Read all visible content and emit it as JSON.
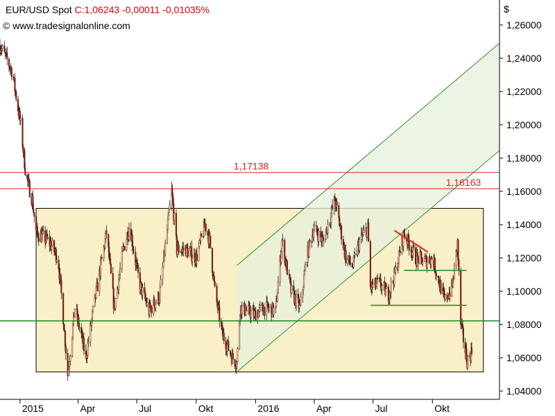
{
  "header": {
    "symbol": "EUR/USD Spot",
    "quote": "C:1,06243 -0,00011 -0,01035%"
  },
  "watermark": "© www.tradesignalonline.com",
  "colors": {
    "candle_body": "#7a1a10",
    "wick": "#000000",
    "resistance_lines": "#e02020",
    "support_lines": "#1a8a1a",
    "range_box_fill": "#f9f0c8",
    "channel_line": "#2e8b2e",
    "channel_fill": "#e6f0dc"
  },
  "chart_data": {
    "type": "candlestick",
    "currency_label": "$",
    "ylim": [
      1.035,
      1.275
    ],
    "y_ticks": [
      "1,26000",
      "1,24000",
      "1,22000",
      "1,20000",
      "1,18000",
      "1,16000",
      "1,14000",
      "1,12000",
      "1,10000",
      "1,08000",
      "1,06000",
      "1,04000"
    ],
    "y_tick_values": [
      1.26,
      1.24,
      1.22,
      1.2,
      1.18,
      1.16,
      1.14,
      1.12,
      1.1,
      1.08,
      1.06,
      1.04
    ],
    "x_ticks": [
      "2015",
      "Apr",
      "Jul",
      "Okt",
      "2016",
      "Apr",
      "Jul",
      "Okt"
    ],
    "x_tick_dates": [
      "2015-01-01",
      "2015-04-01",
      "2015-07-01",
      "2015-10-01",
      "2016-01-01",
      "2016-04-01",
      "2016-07-01",
      "2016-10-01"
    ],
    "x_range": [
      "2014-12-01",
      "2017-01-13"
    ],
    "price_path": [
      [
        "2014-12-01",
        1.248
      ],
      [
        "2014-12-20",
        1.232
      ],
      [
        "2015-01-02",
        1.2
      ],
      [
        "2015-01-10",
        1.17
      ],
      [
        "2015-01-20",
        1.155
      ],
      [
        "2015-01-26",
        1.135
      ],
      [
        "2015-02-15",
        1.13
      ],
      [
        "2015-03-01",
        1.12
      ],
      [
        "2015-03-10",
        1.08
      ],
      [
        "2015-03-16",
        1.05
      ],
      [
        "2015-03-27",
        1.09
      ],
      [
        "2015-04-05",
        1.075
      ],
      [
        "2015-04-13",
        1.06
      ],
      [
        "2015-04-25",
        1.09
      ],
      [
        "2015-05-15",
        1.135
      ],
      [
        "2015-05-27",
        1.09
      ],
      [
        "2015-06-10",
        1.125
      ],
      [
        "2015-06-20",
        1.14
      ],
      [
        "2015-06-28",
        1.12
      ],
      [
        "2015-07-05",
        1.105
      ],
      [
        "2015-07-20",
        1.088
      ],
      [
        "2015-08-05",
        1.097
      ],
      [
        "2015-08-24",
        1.16
      ],
      [
        "2015-09-01",
        1.125
      ],
      [
        "2015-09-15",
        1.125
      ],
      [
        "2015-10-01",
        1.12
      ],
      [
        "2015-10-15",
        1.14
      ],
      [
        "2015-10-22",
        1.13
      ],
      [
        "2015-10-30",
        1.1
      ],
      [
        "2015-11-10",
        1.075
      ],
      [
        "2015-11-26",
        1.06
      ],
      [
        "2015-12-03",
        1.057
      ],
      [
        "2015-12-08",
        1.09
      ],
      [
        "2015-12-31",
        1.086
      ],
      [
        "2016-01-15",
        1.09
      ],
      [
        "2016-02-01",
        1.088
      ],
      [
        "2016-02-11",
        1.13
      ],
      [
        "2016-02-25",
        1.1
      ],
      [
        "2016-03-10",
        1.09
      ],
      [
        "2016-03-20",
        1.12
      ],
      [
        "2016-03-31",
        1.138
      ],
      [
        "2016-04-15",
        1.13
      ],
      [
        "2016-05-03",
        1.155
      ],
      [
        "2016-05-20",
        1.12
      ],
      [
        "2016-05-31",
        1.115
      ],
      [
        "2016-06-10",
        1.13
      ],
      [
        "2016-06-23",
        1.138
      ],
      [
        "2016-06-27",
        1.102
      ],
      [
        "2016-07-10",
        1.105
      ],
      [
        "2016-07-25",
        1.098
      ],
      [
        "2016-08-05",
        1.112
      ],
      [
        "2016-08-18",
        1.135
      ],
      [
        "2016-09-05",
        1.12
      ],
      [
        "2016-09-20",
        1.118
      ],
      [
        "2016-10-01",
        1.12
      ],
      [
        "2016-10-20",
        1.094
      ],
      [
        "2016-11-01",
        1.103
      ],
      [
        "2016-11-09",
        1.129
      ],
      [
        "2016-11-14",
        1.08
      ],
      [
        "2016-11-24",
        1.058
      ],
      [
        "2016-12-01",
        1.064
      ]
    ],
    "annotations": {
      "resistance": [
        {
          "value": 1.17138,
          "label": "1,17138"
        },
        {
          "value": 1.16163,
          "label": "1,16163"
        }
      ],
      "support_line": {
        "value": 1.0822
      },
      "range_box": {
        "from": "2015-01-26",
        "to": "2016-12-19",
        "low": 1.0515,
        "high": 1.1498
      },
      "uptrend_channel": {
        "start": [
          "2015-12-03",
          1.0515
        ],
        "end": [
          "2017-01-13",
          1.1845
        ],
        "upper_start": [
          "2015-12-03",
          1.1155
        ],
        "upper_end": [
          "2017-01-13",
          1.249
        ]
      },
      "red_trendline": {
        "from": [
          "2016-08-03",
          1.1365
        ],
        "to": [
          "2016-09-24",
          1.1235
        ]
      },
      "green_lines": [
        {
          "from": [
            "2016-08-18",
            1.1125
          ],
          "to": [
            "2016-11-23",
            1.1125
          ]
        },
        {
          "from": [
            "2016-06-27",
            1.0915
          ],
          "to": [
            "2016-11-23",
            1.0915
          ]
        }
      ]
    }
  }
}
